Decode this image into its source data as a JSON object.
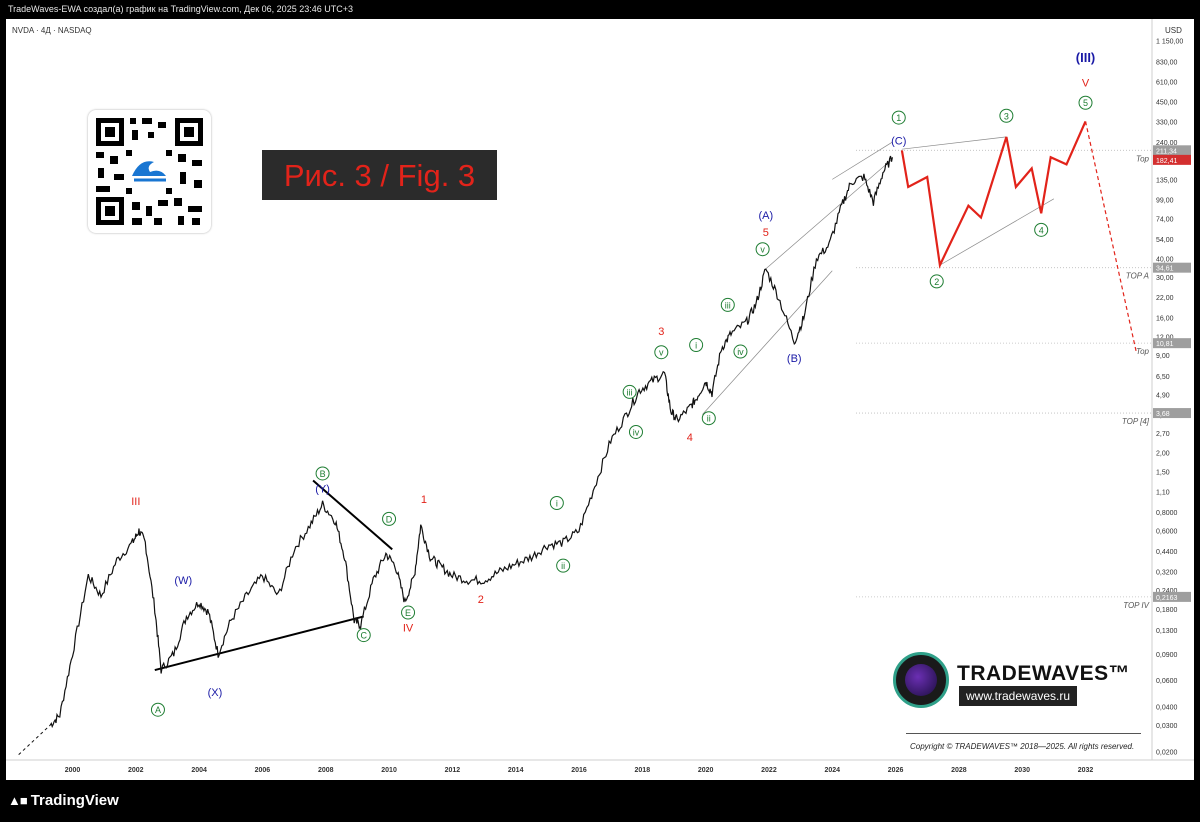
{
  "header": {
    "text": "TradeWaves-EWA создал(а) график на TradingView.com, Дек 06, 2025 23:46 UTC+3"
  },
  "ticker": "NVDA · 4Д · NASDAQ",
  "currency": "USD",
  "figure_label": "Рис. 3 / Fig. 3",
  "brand": {
    "name": "TRADEWAVES™",
    "url": "www.tradewaves.ru",
    "copyright": "Copyright © TRADEWAVES™ 2018—2025. All rights reserved."
  },
  "footer": {
    "logo_text": "TradingView"
  },
  "colors": {
    "red_path": "#e2231a",
    "blue_labels": "#1a1aa6",
    "green_labels": "#1e7d32",
    "price_tag": "#d32f2f"
  },
  "chart_data": {
    "type": "line",
    "scale": "log",
    "x_ticks": [
      "2000",
      "2002",
      "2004",
      "2006",
      "2008",
      "2010",
      "2012",
      "2014",
      "2016",
      "2018",
      "2020",
      "2022",
      "2024",
      "2026",
      "2028",
      "2030",
      "2032"
    ],
    "y_ticks": [
      "1 150,00",
      "830,00",
      "610,00",
      "450,00",
      "330,00",
      "240,00",
      "135,00",
      "99,00",
      "74,00",
      "54,00",
      "40,00",
      "30,00",
      "22,00",
      "16,00",
      "12,00",
      "9,00",
      "6,50",
      "4,90",
      "3,60",
      "2,70",
      "2,00",
      "1,50",
      "1,10",
      "0,8000",
      "0,6000",
      "0,4400",
      "0,3200",
      "0,2400",
      "0,1800",
      "0,1300",
      "0,0900",
      "0,0600",
      "0,0400",
      "0,0300",
      "0,0200"
    ],
    "price_tags": [
      {
        "label": "211,34",
        "value": 211.34,
        "color": "#9e9e9e"
      },
      {
        "label": "182,41",
        "value": 182.41,
        "color": "#d32f2f"
      },
      {
        "label": "34,61",
        "value": 34.61,
        "color": "#9e9e9e"
      },
      {
        "label": "10,81",
        "value": 10.81,
        "color": "#9e9e9e"
      },
      {
        "label": "3,68",
        "value": 3.68,
        "color": "#9e9e9e"
      },
      {
        "label": "0,2163",
        "value": 0.2163,
        "color": "#9e9e9e"
      }
    ],
    "levels": [
      {
        "name": "Top",
        "value": 211.34
      },
      {
        "name": "TOP A",
        "value": 34.61
      },
      {
        "name": "Top",
        "value": 10.81
      },
      {
        "name": "TOP [4]",
        "value": 3.68
      },
      {
        "name": "TOP IV",
        "value": 0.2163
      }
    ],
    "price_series": [
      [
        1999.3,
        0.03
      ],
      [
        1999.6,
        0.035
      ],
      [
        2000.0,
        0.09
      ],
      [
        2000.5,
        0.3
      ],
      [
        2000.9,
        0.22
      ],
      [
        2001.4,
        0.38
      ],
      [
        2001.9,
        0.5
      ],
      [
        2002.1,
        0.6
      ],
      [
        2002.3,
        0.5
      ],
      [
        2002.6,
        0.18
      ],
      [
        2002.8,
        0.07
      ],
      [
        2003.2,
        0.09
      ],
      [
        2003.6,
        0.16
      ],
      [
        2004.0,
        0.2
      ],
      [
        2004.3,
        0.17
      ],
      [
        2004.6,
        0.09
      ],
      [
        2005.0,
        0.15
      ],
      [
        2005.5,
        0.22
      ],
      [
        2006.0,
        0.3
      ],
      [
        2006.5,
        0.22
      ],
      [
        2007.0,
        0.45
      ],
      [
        2007.5,
        0.65
      ],
      [
        2007.9,
        0.9
      ],
      [
        2008.3,
        0.7
      ],
      [
        2008.6,
        0.4
      ],
      [
        2008.9,
        0.15
      ],
      [
        2009.1,
        0.14
      ],
      [
        2009.5,
        0.28
      ],
      [
        2009.9,
        0.42
      ],
      [
        2010.2,
        0.35
      ],
      [
        2010.5,
        0.2
      ],
      [
        2010.8,
        0.3
      ],
      [
        2011.0,
        0.65
      ],
      [
        2011.3,
        0.4
      ],
      [
        2011.6,
        0.35
      ],
      [
        2012.0,
        0.3
      ],
      [
        2012.5,
        0.28
      ],
      [
        2013.0,
        0.28
      ],
      [
        2013.5,
        0.32
      ],
      [
        2014.0,
        0.36
      ],
      [
        2014.5,
        0.4
      ],
      [
        2015.0,
        0.48
      ],
      [
        2015.5,
        0.5
      ],
      [
        2016.0,
        0.6
      ],
      [
        2016.5,
        1.2
      ],
      [
        2017.0,
        2.4
      ],
      [
        2017.5,
        3.6
      ],
      [
        2017.9,
        5.2
      ],
      [
        2018.3,
        6.0
      ],
      [
        2018.7,
        6.8
      ],
      [
        2018.9,
        3.8
      ],
      [
        2019.1,
        3.3
      ],
      [
        2019.5,
        4.0
      ],
      [
        2019.7,
        4.6
      ],
      [
        2020.0,
        6.0
      ],
      [
        2020.2,
        5.0
      ],
      [
        2020.5,
        10.0
      ],
      [
        2020.8,
        12.5
      ],
      [
        2021.3,
        15.0
      ],
      [
        2021.6,
        20.0
      ],
      [
        2021.9,
        34.0
      ],
      [
        2022.3,
        22.0
      ],
      [
        2022.8,
        11.0
      ],
      [
        2023.1,
        16.0
      ],
      [
        2023.5,
        40.0
      ],
      [
        2023.9,
        49.0
      ],
      [
        2024.3,
        90.0
      ],
      [
        2024.6,
        130.0
      ],
      [
        2025.0,
        140.0
      ],
      [
        2025.3,
        95.0
      ],
      [
        2025.6,
        150.0
      ],
      [
        2025.9,
        190.0
      ]
    ],
    "forecast_path": [
      [
        2026.2,
        211
      ],
      [
        2026.4,
        120
      ],
      [
        2027.0,
        140
      ],
      [
        2027.4,
        36
      ],
      [
        2028.3,
        90
      ],
      [
        2028.7,
        75
      ],
      [
        2029.5,
        260
      ],
      [
        2029.8,
        120
      ],
      [
        2030.3,
        160
      ],
      [
        2030.6,
        80
      ],
      [
        2030.9,
        190
      ],
      [
        2031.4,
        170
      ],
      [
        2032.0,
        330
      ]
    ],
    "forecast_decline": [
      [
        2032.0,
        330
      ],
      [
        2033.6,
        9.5
      ]
    ],
    "wave_labels": [
      {
        "text": "III",
        "x": 2002.0,
        "y": 0.95,
        "style": "red"
      },
      {
        "text": "(W)",
        "x": 2003.5,
        "y": 0.28,
        "style": "blue"
      },
      {
        "text": "(X)",
        "x": 2004.5,
        "y": 0.05,
        "style": "blue"
      },
      {
        "text": "A",
        "x": 2002.7,
        "y": 0.038,
        "style": "green-circle"
      },
      {
        "text": "B",
        "x": 2007.9,
        "y": 1.45,
        "style": "green-circle"
      },
      {
        "text": "(Y)",
        "x": 2007.9,
        "y": 1.15,
        "style": "blue"
      },
      {
        "text": "C",
        "x": 2009.2,
        "y": 0.12,
        "style": "green-circle"
      },
      {
        "text": "D",
        "x": 2010.0,
        "y": 0.72,
        "style": "green-circle"
      },
      {
        "text": "E",
        "x": 2010.6,
        "y": 0.17,
        "style": "green-circle"
      },
      {
        "text": "IV",
        "x": 2010.6,
        "y": 0.135,
        "style": "red"
      },
      {
        "text": "1",
        "x": 2011.1,
        "y": 0.98,
        "style": "red"
      },
      {
        "text": "2",
        "x": 2012.9,
        "y": 0.21,
        "style": "red"
      },
      {
        "text": "i",
        "x": 2015.3,
        "y": 0.92,
        "style": "green-circle"
      },
      {
        "text": "ii",
        "x": 2015.5,
        "y": 0.35,
        "style": "green-circle"
      },
      {
        "text": "iii",
        "x": 2017.6,
        "y": 5.1,
        "style": "green-circle"
      },
      {
        "text": "iv",
        "x": 2017.8,
        "y": 2.75,
        "style": "green-circle"
      },
      {
        "text": "3",
        "x": 2018.6,
        "y": 13.0,
        "style": "red"
      },
      {
        "text": "v",
        "x": 2018.6,
        "y": 9.4,
        "style": "green-circle"
      },
      {
        "text": "4",
        "x": 2019.5,
        "y": 2.55,
        "style": "red"
      },
      {
        "text": "i",
        "x": 2019.7,
        "y": 10.5,
        "style": "green-circle"
      },
      {
        "text": "ii",
        "x": 2020.1,
        "y": 3.4,
        "style": "green-circle"
      },
      {
        "text": "iii",
        "x": 2020.7,
        "y": 19.5,
        "style": "green-circle"
      },
      {
        "text": "iv",
        "x": 2021.1,
        "y": 9.5,
        "style": "green-circle"
      },
      {
        "text": "v",
        "x": 2021.8,
        "y": 46.0,
        "style": "green-circle"
      },
      {
        "text": "(A)",
        "x": 2021.9,
        "y": 78.0,
        "style": "blue"
      },
      {
        "text": "5",
        "x": 2021.9,
        "y": 60.0,
        "style": "red"
      },
      {
        "text": "(B)",
        "x": 2022.8,
        "y": 8.6,
        "style": "blue"
      },
      {
        "text": "(C)",
        "x": 2026.1,
        "y": 245.0,
        "style": "blue"
      },
      {
        "text": "1",
        "x": 2026.1,
        "y": 350.0,
        "style": "green-circle"
      },
      {
        "text": "2",
        "x": 2027.3,
        "y": 28.0,
        "style": "green-circle"
      },
      {
        "text": "3",
        "x": 2029.5,
        "y": 360.0,
        "style": "green-circle"
      },
      {
        "text": "4",
        "x": 2030.6,
        "y": 62.0,
        "style": "green-circle"
      },
      {
        "text": "5",
        "x": 2032.0,
        "y": 440.0,
        "style": "green-circle"
      },
      {
        "text": "V",
        "x": 2032.0,
        "y": 600.0,
        "style": "red"
      },
      {
        "text": "(III)",
        "x": 2032.0,
        "y": 880.0,
        "style": "blue"
      }
    ],
    "trendlines": [
      {
        "from": [
          2002.6,
          0.07
        ],
        "to": [
          2009.2,
          0.16
        ],
        "color": "#000000"
      },
      {
        "from": [
          2007.6,
          1.3
        ],
        "to": [
          2010.1,
          0.45
        ],
        "color": "#000000"
      }
    ],
    "channel_lines": [
      {
        "from": [
          2024.0,
          135
        ],
        "to": [
          2025.9,
          240
        ]
      },
      {
        "from": [
          2026.2,
          215
        ],
        "to": [
          2029.5,
          260
        ]
      },
      {
        "from": [
          2027.4,
          36
        ],
        "to": [
          2031.0,
          100
        ]
      },
      {
        "from": [
          2021.9,
          34
        ],
        "to": [
          2025.9,
          185
        ]
      },
      {
        "from": [
          2019.9,
          3.6
        ],
        "to": [
          2024.0,
          33
        ]
      }
    ]
  }
}
